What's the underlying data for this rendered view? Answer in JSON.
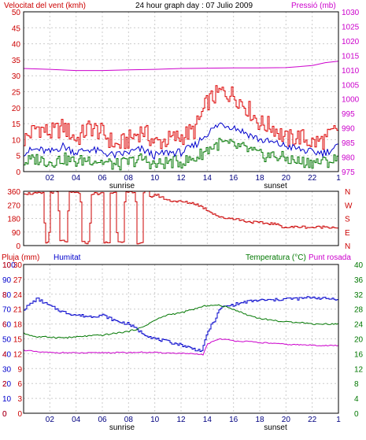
{
  "header": {
    "title": "24 hour graph day : 07 Julio 2009",
    "wind_label": "Velocitat del vent (kmh)",
    "pressure_label": "Pressió (mb)"
  },
  "colors": {
    "wind_gust": "#dd0000",
    "wind_avg": "#0000cc",
    "wind_min": "#007700",
    "pressure": "#cc00cc",
    "direction": "#cc0000",
    "rain": "#cc0000",
    "humidity": "#0000cc",
    "temperature": "#007700",
    "dewpoint": "#cc00cc",
    "grid": "#cccccc",
    "frame": "#000000"
  },
  "chart_data": [
    {
      "type": "line",
      "name": "wind-pressure",
      "x_ticks": [
        "02",
        "04",
        "06",
        "08",
        "10",
        "12",
        "14",
        "16",
        "18",
        "20",
        "22",
        "1"
      ],
      "x_annotations": [
        "sunrise",
        "sunset"
      ],
      "left_axis": {
        "label": "Velocitat del vent (kmh)",
        "ticks": [
          0,
          5,
          10,
          15,
          20,
          25,
          30,
          35,
          40,
          45,
          50
        ],
        "range": [
          0,
          50
        ]
      },
      "right_axis": {
        "label": "Pressió (mb)",
        "ticks": [
          975,
          980,
          985,
          990,
          995,
          1000,
          1005,
          1010,
          1015,
          1020,
          1025,
          1030
        ],
        "range": [
          975,
          1030
        ]
      },
      "series": [
        {
          "key": "gust",
          "axis": "left",
          "hours": [
            0,
            1,
            2,
            3,
            4,
            5,
            6,
            7,
            8,
            9,
            10,
            11,
            12,
            13,
            14,
            15,
            16,
            17,
            18,
            19,
            20,
            21,
            22,
            23,
            24
          ],
          "values": [
            10,
            14,
            12,
            14,
            10,
            14,
            12,
            8,
            10,
            13,
            9,
            10,
            11,
            13,
            22,
            25,
            24,
            20,
            15,
            14,
            10,
            11,
            9,
            10,
            14
          ]
        },
        {
          "key": "avg",
          "axis": "left",
          "hours": [
            0,
            1,
            2,
            3,
            4,
            5,
            6,
            7,
            8,
            9,
            10,
            11,
            12,
            13,
            14,
            15,
            16,
            17,
            18,
            19,
            20,
            21,
            22,
            23,
            24
          ],
          "values": [
            6,
            7,
            6,
            8,
            6,
            7,
            6,
            5,
            6,
            7,
            5,
            6,
            6,
            8,
            12,
            15,
            14,
            12,
            10,
            9,
            8,
            7,
            6,
            6,
            8
          ]
        },
        {
          "key": "min",
          "axis": "left",
          "hours": [
            0,
            1,
            2,
            3,
            4,
            5,
            6,
            7,
            8,
            9,
            10,
            11,
            12,
            13,
            14,
            15,
            16,
            17,
            18,
            19,
            20,
            21,
            22,
            23,
            24
          ],
          "values": [
            3,
            4,
            3,
            4,
            3,
            4,
            3,
            2,
            3,
            4,
            2,
            3,
            3,
            4,
            7,
            9,
            8,
            7,
            5,
            5,
            4,
            3,
            3,
            3,
            4
          ]
        },
        {
          "key": "pressure",
          "axis": "right",
          "hours": [
            0,
            2,
            4,
            6,
            8,
            10,
            12,
            14,
            16,
            18,
            20,
            22,
            23,
            24
          ],
          "values": [
            1010.5,
            1010.2,
            1009.8,
            1009.8,
            1010.0,
            1010.2,
            1010.5,
            1010.6,
            1010.7,
            1010.7,
            1010.8,
            1011.5,
            1012.5,
            1013.0
          ]
        }
      ]
    },
    {
      "type": "line",
      "name": "wind-direction",
      "left_axis": {
        "ticks": [
          0,
          90,
          180,
          270,
          360
        ],
        "range": [
          0,
          360
        ]
      },
      "right_axis": {
        "ticks": [
          "N",
          "E",
          "S",
          "W",
          "N"
        ]
      },
      "series": [
        {
          "key": "direction",
          "hours": [
            0,
            0.2,
            1.5,
            1.6,
            1.9,
            2.0,
            2.6,
            2.7,
            3.3,
            3.4,
            4.3,
            4.4,
            5.0,
            5.1,
            6.0,
            6.1,
            6.5,
            6.6,
            7.0,
            7.1,
            7.6,
            7.7,
            8.5,
            8.6,
            9.0,
            9.1,
            9.5,
            9.6,
            10.0,
            10.5,
            11.0,
            12.0,
            13.0,
            13.5,
            14.0,
            14.5,
            15.0,
            16.0,
            17.0,
            18.0,
            19.0,
            20.0,
            21.0,
            22.0,
            23.0,
            24.0
          ],
          "values": [
            350,
            345,
            345,
            20,
            20,
            355,
            355,
            30,
            30,
            350,
            350,
            20,
            20,
            345,
            345,
            20,
            20,
            350,
            350,
            30,
            30,
            350,
            350,
            20,
            20,
            355,
            355,
            320,
            340,
            320,
            300,
            290,
            280,
            260,
            235,
            210,
            185,
            180,
            160,
            150,
            145,
            120,
            125,
            120,
            125,
            120
          ]
        }
      ]
    },
    {
      "type": "line",
      "name": "rain-humidity-temperature",
      "x_ticks": [
        "02",
        "04",
        "06",
        "08",
        "10",
        "12",
        "14",
        "16",
        "18",
        "20",
        "22",
        "1"
      ],
      "x_annotations": [
        "sunrise",
        "sunset"
      ],
      "left_labels": {
        "rain": "Pluja (mm)",
        "humidity": "Humitat"
      },
      "right_labels": {
        "temperature": "Temperatura (°C)",
        "dewpoint": "Punt rosada"
      },
      "rain_axis": {
        "ticks": [
          0,
          2,
          4,
          6,
          8,
          10
        ],
        "range": [
          0,
          10
        ]
      },
      "humidity_axis": {
        "ticks": [
          0,
          10,
          20,
          30,
          40,
          50,
          60,
          70,
          80,
          90,
          100
        ],
        "range": [
          0,
          100
        ]
      },
      "temp_left_axis": {
        "ticks": [
          0,
          3,
          6,
          9,
          12,
          15,
          18,
          21,
          24,
          27,
          30
        ],
        "range": [
          0,
          30
        ]
      },
      "temp_right_axis": {
        "ticks": [
          0,
          4,
          8,
          12,
          16,
          20,
          24,
          28,
          32,
          36,
          40
        ],
        "range": [
          0,
          40
        ]
      },
      "series": [
        {
          "key": "rain",
          "hours": [
            0,
            24
          ],
          "values": [
            0,
            0
          ]
        },
        {
          "key": "humidity",
          "hours": [
            0,
            1,
            2,
            3,
            4,
            5,
            6,
            7,
            8,
            9,
            10,
            11,
            12,
            13,
            13.6,
            14,
            14.5,
            15,
            16,
            17,
            18,
            19,
            20,
            21,
            22,
            23,
            24
          ],
          "values": [
            70,
            77,
            72,
            68,
            66,
            65,
            66,
            62,
            60,
            54,
            50,
            48,
            46,
            43,
            42,
            55,
            62,
            71,
            73,
            75,
            76,
            76,
            77,
            77,
            78,
            77,
            77
          ]
        },
        {
          "key": "temperature",
          "hours": [
            0,
            1,
            2,
            3,
            4,
            5,
            6,
            7,
            8,
            9,
            10,
            11,
            12,
            13,
            14,
            15,
            16,
            17,
            18,
            19,
            20,
            21,
            22,
            23,
            24
          ],
          "values": [
            21.5,
            20.5,
            20.5,
            20.3,
            20.5,
            20.8,
            21.0,
            21.5,
            22.0,
            23.0,
            25.0,
            26.5,
            27.0,
            28.0,
            29.0,
            29.0,
            28.0,
            26.5,
            25.5,
            25.0,
            24.5,
            24.5,
            24.0,
            24.0,
            24.0
          ]
        },
        {
          "key": "dewpoint",
          "hours": [
            0,
            1,
            2,
            3,
            4,
            5,
            6,
            7,
            8,
            9,
            10,
            11,
            12,
            13,
            13.7,
            14,
            14.5,
            15,
            16,
            17,
            18,
            19,
            20,
            21,
            22,
            23,
            24
          ],
          "values": [
            17.0,
            16.5,
            16.3,
            16.3,
            16.2,
            16.2,
            16.3,
            16.3,
            16.3,
            16.4,
            16.3,
            16.2,
            16.1,
            15.9,
            15.8,
            18.5,
            19.5,
            20.0,
            19.5,
            19.3,
            19.0,
            18.8,
            18.5,
            18.4,
            18.3,
            18.2,
            18.2
          ]
        }
      ]
    }
  ]
}
